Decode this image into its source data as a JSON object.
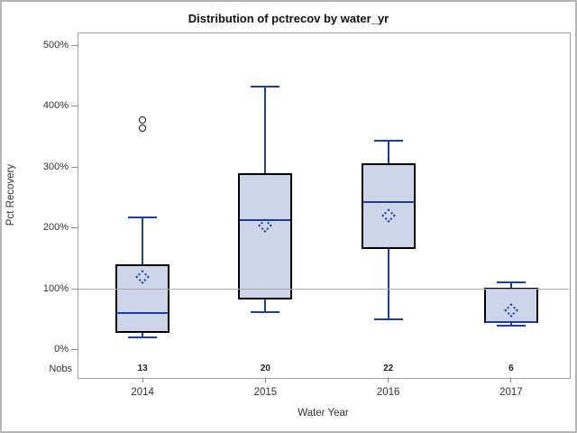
{
  "chart_data": {
    "type": "boxplot",
    "title": "Distribution of pctrecov by water_yr",
    "xlabel": "Water Year",
    "ylabel": "Pct Recovery",
    "nobs_label": "Nobs",
    "ylim": [
      0,
      500
    ],
    "grid": false,
    "reference_line_value": 100,
    "y_ticks": [
      {
        "value": 0,
        "label": "0%"
      },
      {
        "value": 100,
        "label": "100%"
      },
      {
        "value": 200,
        "label": "200%"
      },
      {
        "value": 300,
        "label": "300%"
      },
      {
        "value": 400,
        "label": "400%"
      },
      {
        "value": 500,
        "label": "500%"
      }
    ],
    "categories": [
      "2014",
      "2015",
      "2016",
      "2017"
    ],
    "series": [
      {
        "category": "2014",
        "nobs": "13",
        "whisker_low": 20,
        "q1": 28,
        "median": 60,
        "q3": 140,
        "whisker_high": 217,
        "mean": 120,
        "outliers": [
          364,
          377
        ]
      },
      {
        "category": "2015",
        "nobs": "20",
        "whisker_low": 61,
        "q1": 82,
        "median": 213,
        "q3": 290,
        "whisker_high": 433,
        "mean": 204,
        "outliers": []
      },
      {
        "category": "2016",
        "nobs": "22",
        "whisker_low": 49,
        "q1": 165,
        "median": 243,
        "q3": 306,
        "whisker_high": 343,
        "mean": 221,
        "outliers": []
      },
      {
        "category": "2017",
        "nobs": "6",
        "whisker_low": 40,
        "q1": 44,
        "median": 45,
        "q3": 102,
        "whisker_high": 110,
        "mean": 64,
        "outliers": []
      }
    ],
    "colors": {
      "box_fill": "#ccd6e8",
      "box_border": "#000000",
      "line": "#1c3da8",
      "reference_line": "#ababab",
      "frame": "#9aa0a4",
      "outlier": "#1a1a1a",
      "text": "#333333"
    }
  }
}
